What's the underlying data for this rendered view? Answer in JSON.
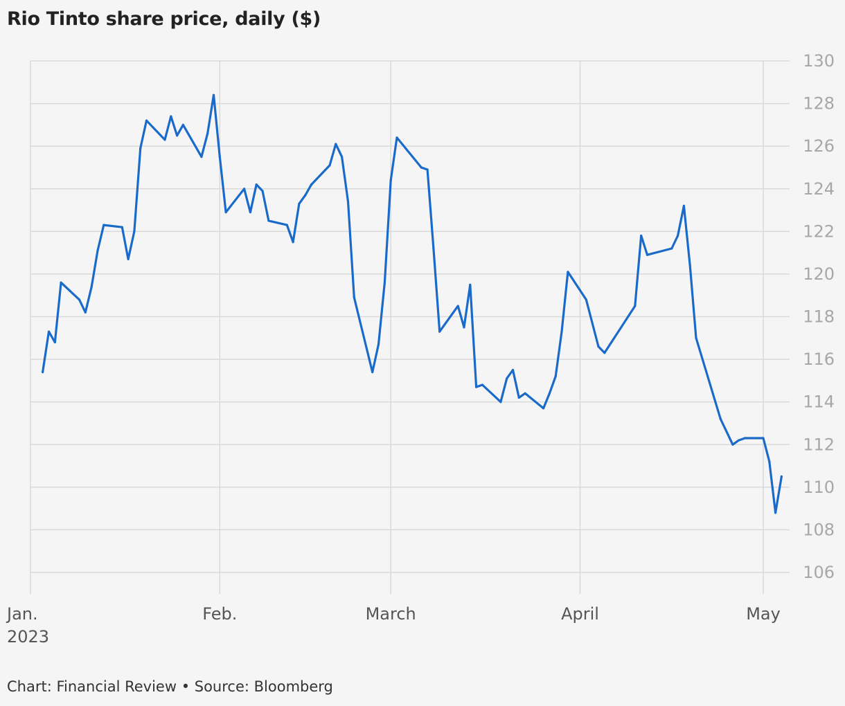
{
  "title": "Rio Tinto share price, daily ($)",
  "footer": "Chart: Financial Review • Source: Bloomberg",
  "colors": {
    "line": "#1a6ac9",
    "grid": "#d9d9d9",
    "axis_text": "#a7a7a7",
    "background": "#f5f5f5"
  },
  "chart_data": {
    "type": "line",
    "title": "Rio Tinto share price, daily ($)",
    "xlabel": "",
    "ylabel": "",
    "ylim": [
      105,
      130
    ],
    "xlim": [
      "2023-01-01",
      "2023-05-06"
    ],
    "y_ticks": [
      106,
      108,
      110,
      112,
      114,
      116,
      118,
      120,
      122,
      124,
      126,
      128,
      130
    ],
    "x_ticks": [
      {
        "date": "2023-01-01",
        "label": "Jan.",
        "sublabel": "2023"
      },
      {
        "date": "2023-02-01",
        "label": "Feb."
      },
      {
        "date": "2023-03-01",
        "label": "March"
      },
      {
        "date": "2023-04-01",
        "label": "April"
      },
      {
        "date": "2023-05-01",
        "label": "May"
      }
    ],
    "grid": true,
    "y_axis_position": "right",
    "series": [
      {
        "values": [
          {
            "x": "2023-01-03",
            "y": 115.4
          },
          {
            "x": "2023-01-04",
            "y": 117.3
          },
          {
            "x": "2023-01-05",
            "y": 116.8
          },
          {
            "x": "2023-01-06",
            "y": 119.6
          },
          {
            "x": "2023-01-09",
            "y": 118.8
          },
          {
            "x": "2023-01-10",
            "y": 118.2
          },
          {
            "x": "2023-01-11",
            "y": 119.4
          },
          {
            "x": "2023-01-12",
            "y": 121.1
          },
          {
            "x": "2023-01-13",
            "y": 122.3
          },
          {
            "x": "2023-01-16",
            "y": 122.2
          },
          {
            "x": "2023-01-17",
            "y": 120.7
          },
          {
            "x": "2023-01-18",
            "y": 122.0
          },
          {
            "x": "2023-01-19",
            "y": 125.9
          },
          {
            "x": "2023-01-20",
            "y": 127.2
          },
          {
            "x": "2023-01-23",
            "y": 126.3
          },
          {
            "x": "2023-01-24",
            "y": 127.4
          },
          {
            "x": "2023-01-25",
            "y": 126.5
          },
          {
            "x": "2023-01-26",
            "y": 127.0
          },
          {
            "x": "2023-01-29",
            "y": 125.5
          },
          {
            "x": "2023-01-30",
            "y": 126.6
          },
          {
            "x": "2023-01-31",
            "y": 128.4
          },
          {
            "x": "2023-02-01",
            "y": 125.5
          },
          {
            "x": "2023-02-02",
            "y": 122.9
          },
          {
            "x": "2023-02-05",
            "y": 124.0
          },
          {
            "x": "2023-02-06",
            "y": 122.9
          },
          {
            "x": "2023-02-07",
            "y": 124.2
          },
          {
            "x": "2023-02-08",
            "y": 123.9
          },
          {
            "x": "2023-02-09",
            "y": 122.5
          },
          {
            "x": "2023-02-12",
            "y": 122.3
          },
          {
            "x": "2023-02-13",
            "y": 121.5
          },
          {
            "x": "2023-02-14",
            "y": 123.3
          },
          {
            "x": "2023-02-15",
            "y": 123.7
          },
          {
            "x": "2023-02-16",
            "y": 124.2
          },
          {
            "x": "2023-02-19",
            "y": 125.1
          },
          {
            "x": "2023-02-20",
            "y": 126.1
          },
          {
            "x": "2023-02-21",
            "y": 125.5
          },
          {
            "x": "2023-02-22",
            "y": 123.4
          },
          {
            "x": "2023-02-23",
            "y": 118.9
          },
          {
            "x": "2023-02-26",
            "y": 115.4
          },
          {
            "x": "2023-02-27",
            "y": 116.7
          },
          {
            "x": "2023-02-28",
            "y": 119.6
          },
          {
            "x": "2023-03-01",
            "y": 124.4
          },
          {
            "x": "2023-03-02",
            "y": 126.4
          },
          {
            "x": "2023-03-06",
            "y": 125.0
          },
          {
            "x": "2023-03-07",
            "y": 124.9
          },
          {
            "x": "2023-03-08",
            "y": 121.2
          },
          {
            "x": "2023-03-09",
            "y": 117.3
          },
          {
            "x": "2023-03-12",
            "y": 118.5
          },
          {
            "x": "2023-03-13",
            "y": 117.5
          },
          {
            "x": "2023-03-14",
            "y": 119.5
          },
          {
            "x": "2023-03-15",
            "y": 114.7
          },
          {
            "x": "2023-03-16",
            "y": 114.8
          },
          {
            "x": "2023-03-19",
            "y": 114.0
          },
          {
            "x": "2023-03-20",
            "y": 115.1
          },
          {
            "x": "2023-03-21",
            "y": 115.5
          },
          {
            "x": "2023-03-22",
            "y": 114.2
          },
          {
            "x": "2023-03-23",
            "y": 114.4
          },
          {
            "x": "2023-03-26",
            "y": 113.7
          },
          {
            "x": "2023-03-27",
            "y": 114.4
          },
          {
            "x": "2023-03-28",
            "y": 115.2
          },
          {
            "x": "2023-03-29",
            "y": 117.3
          },
          {
            "x": "2023-03-30",
            "y": 120.1
          },
          {
            "x": "2023-04-02",
            "y": 118.8
          },
          {
            "x": "2023-04-04",
            "y": 116.6
          },
          {
            "x": "2023-04-05",
            "y": 116.3
          },
          {
            "x": "2023-04-10",
            "y": 118.5
          },
          {
            "x": "2023-04-11",
            "y": 121.8
          },
          {
            "x": "2023-04-12",
            "y": 120.9
          },
          {
            "x": "2023-04-16",
            "y": 121.2
          },
          {
            "x": "2023-04-17",
            "y": 121.8
          },
          {
            "x": "2023-04-18",
            "y": 123.2
          },
          {
            "x": "2023-04-19",
            "y": 120.4
          },
          {
            "x": "2023-04-20",
            "y": 117.0
          },
          {
            "x": "2023-04-24",
            "y": 113.2
          },
          {
            "x": "2023-04-26",
            "y": 112.0
          },
          {
            "x": "2023-04-27",
            "y": 112.2
          },
          {
            "x": "2023-04-28",
            "y": 112.3
          },
          {
            "x": "2023-05-01",
            "y": 112.3
          },
          {
            "x": "2023-05-02",
            "y": 111.2
          },
          {
            "x": "2023-05-03",
            "y": 108.8
          },
          {
            "x": "2023-05-04",
            "y": 110.5
          }
        ]
      }
    ]
  }
}
